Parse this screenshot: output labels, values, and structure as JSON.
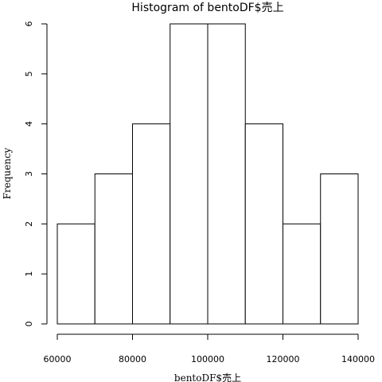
{
  "chart_data": {
    "type": "bar",
    "title": "Histogram of bentoDF$売上",
    "xlabel": "bentoDF$売上",
    "ylabel": "Frequency",
    "bins": [
      {
        "start": 60000,
        "end": 70000,
        "count": 2
      },
      {
        "start": 70000,
        "end": 80000,
        "count": 3
      },
      {
        "start": 80000,
        "end": 90000,
        "count": 4
      },
      {
        "start": 90000,
        "end": 100000,
        "count": 6
      },
      {
        "start": 100000,
        "end": 110000,
        "count": 6
      },
      {
        "start": 110000,
        "end": 120000,
        "count": 4
      },
      {
        "start": 120000,
        "end": 130000,
        "count": 2
      },
      {
        "start": 130000,
        "end": 140000,
        "count": 3
      }
    ],
    "xlim": [
      60000,
      140000
    ],
    "ylim": [
      0,
      6
    ],
    "x_ticks": [
      60000,
      80000,
      100000,
      120000,
      140000
    ],
    "y_ticks": [
      0,
      1,
      2,
      3,
      4,
      5,
      6
    ],
    "grid": false
  }
}
